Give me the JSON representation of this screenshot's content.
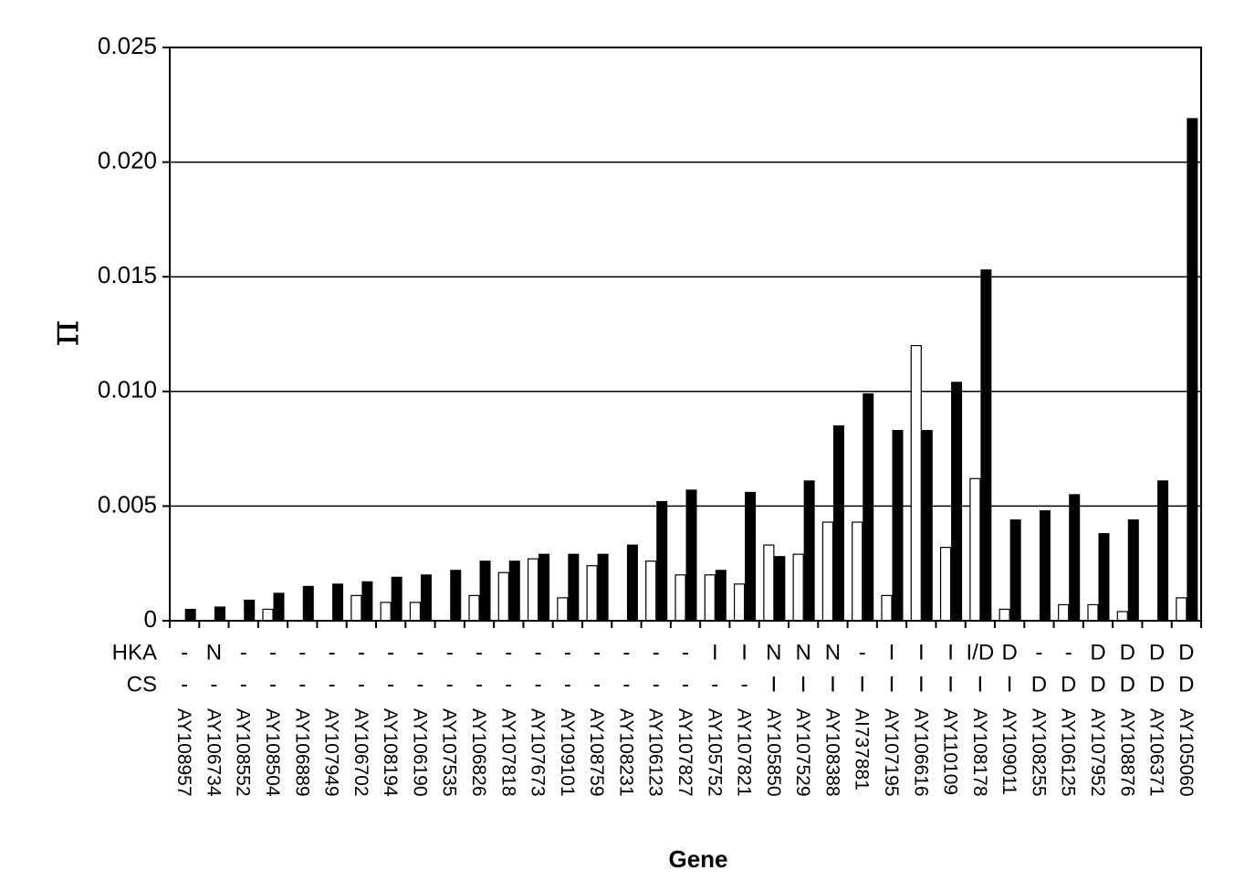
{
  "chart_data": {
    "type": "bar",
    "ylabel": "π",
    "xlabel": "Gene",
    "ylim": [
      0,
      0.025
    ],
    "yticks": [
      "0",
      "0.005",
      "0.010",
      "0.015",
      "0.020",
      "0.025"
    ],
    "ytick_values": [
      0,
      0.005,
      0.01,
      0.015,
      0.02,
      0.025
    ],
    "grid": "horizontal",
    "categories": [
      "AY108957",
      "AY106734",
      "AY108552",
      "AY108504",
      "AY106889",
      "AY107949",
      "AY106702",
      "AY108194",
      "AY106190",
      "AY107535",
      "AY106826",
      "AY107818",
      "AY107673",
      "AY109101",
      "AY108759",
      "AY108231",
      "AY106123",
      "AY107827",
      "AY105752",
      "AY107821",
      "AY105850",
      "AY107529",
      "AY108388",
      "AI737881",
      "AY107195",
      "AY106616",
      "AY110109",
      "AY108178",
      "AY109011",
      "AY108255",
      "AY106125",
      "AY107952",
      "AY108876",
      "AY106371",
      "AY105060"
    ],
    "series": [
      {
        "fill": "white",
        "values": [
          0,
          0,
          0,
          0.0005,
          0,
          0,
          0.0011,
          0.0008,
          0.0008,
          0,
          0.0011,
          0.0021,
          0.0027,
          0.001,
          0.0024,
          0,
          0.0026,
          0.002,
          0.002,
          0.0016,
          0.0033,
          0.0029,
          0.0043,
          0.0043,
          0.0011,
          0.012,
          0.0032,
          0.0062,
          0.0005,
          0,
          0.0007,
          0.0007,
          0.0004,
          0,
          0.001
        ]
      },
      {
        "fill": "black",
        "values": [
          0.0005,
          0.0006,
          0.0009,
          0.0012,
          0.0015,
          0.0016,
          0.0017,
          0.0019,
          0.002,
          0.0022,
          0.0026,
          0.0026,
          0.0029,
          0.0029,
          0.0029,
          0.0033,
          0.0052,
          0.0057,
          0.0022,
          0.0056,
          0.0028,
          0.0061,
          0.0085,
          0.0099,
          0.0083,
          0.0083,
          0.0104,
          0.0153,
          0.0044,
          0.0048,
          0.0055,
          0.0038,
          0.0044,
          0.0061,
          0.0219
        ]
      }
    ],
    "rows": [
      {
        "label": "HKA",
        "values": [
          "-",
          "N",
          "-",
          "-",
          "-",
          "-",
          "-",
          "-",
          "-",
          "-",
          "-",
          "-",
          "-",
          "-",
          "-",
          "-",
          "-",
          "-",
          "I",
          "I",
          "N",
          "N",
          "N",
          "-",
          "I",
          "I",
          "I",
          "I/D",
          "D",
          "-",
          "-",
          "D",
          "D",
          "D",
          "D"
        ]
      },
      {
        "label": "CS",
        "values": [
          "-",
          "-",
          "-",
          "-",
          "-",
          "-",
          "-",
          "-",
          "-",
          "-",
          "-",
          "-",
          "-",
          "-",
          "-",
          "-",
          "-",
          "-",
          "-",
          "-",
          "I",
          "I",
          "I",
          "I",
          "I",
          "I",
          "I",
          "I",
          "I",
          "D",
          "D",
          "D",
          "D",
          "D",
          "D"
        ]
      }
    ]
  }
}
